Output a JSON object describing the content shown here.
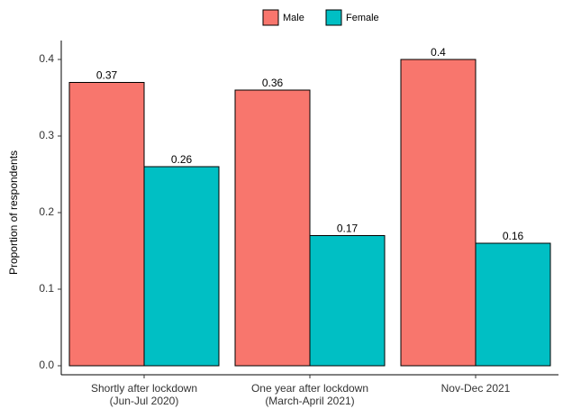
{
  "chart_data": {
    "type": "bar",
    "categories": [
      "Shortly after lockdown\n(Jun-Jul 2020)",
      "One year after lockdown\n(March-April 2021)",
      "Nov-Dec 2021"
    ],
    "series": [
      {
        "name": "Male",
        "color": "#F8766D",
        "values": [
          0.37,
          0.36,
          0.4
        ]
      },
      {
        "name": "Female",
        "color": "#00BFC4",
        "values": [
          0.26,
          0.17,
          0.16
        ]
      }
    ],
    "y_label": "Proportion of respondents",
    "ylim": [
      0,
      0.42
    ],
    "yticks": [
      {
        "value": 0,
        "label": "0.0"
      },
      0.1,
      0.2,
      0.3,
      0.4
    ],
    "legend": "top",
    "grid": false
  }
}
